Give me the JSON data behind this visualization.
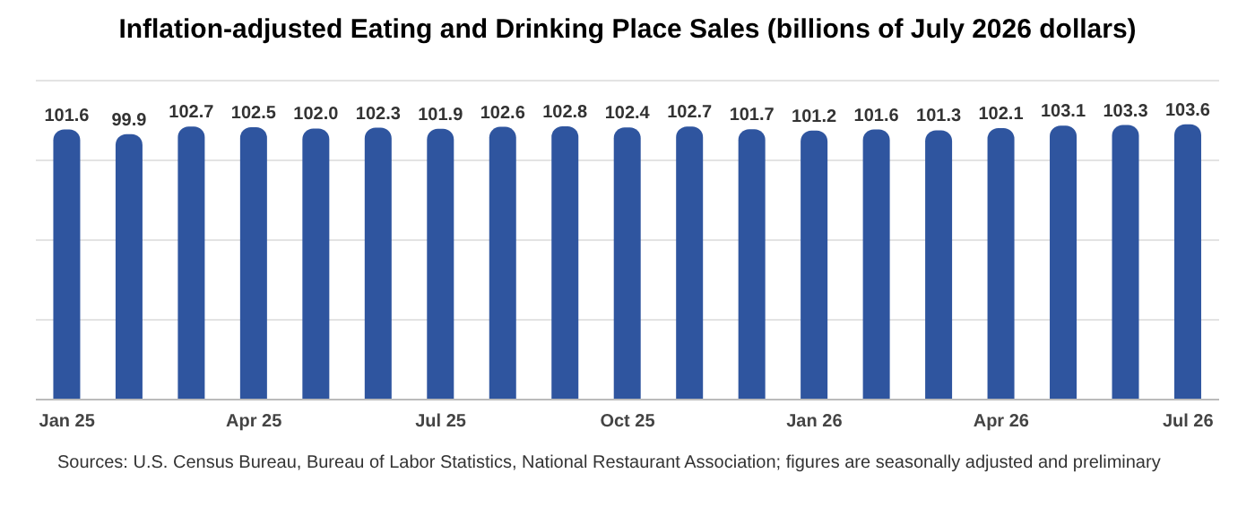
{
  "chart_data": {
    "type": "bar",
    "title": "Inflation-adjusted Eating and Drinking Place Sales (billions of July 2026 dollars)",
    "categories": [
      "Jan 25",
      null,
      null,
      "Apr 25",
      null,
      null,
      "Jul 25",
      null,
      null,
      "Oct 25",
      null,
      null,
      "Jan 26",
      null,
      null,
      "Apr 26",
      null,
      null,
      "Jul 26"
    ],
    "values": [
      101.6,
      99.9,
      102.7,
      102.5,
      102.0,
      102.3,
      101.9,
      102.6,
      102.8,
      102.4,
      102.7,
      101.7,
      101.2,
      101.6,
      101.3,
      102.1,
      103.1,
      103.3,
      103.6
    ],
    "value_labels": [
      "101.6",
      "99.9",
      "102.7",
      "102.5",
      "102.0",
      "102.3",
      "101.9",
      "102.6",
      "102.8",
      "102.4",
      "102.7",
      "101.7",
      "101.2",
      "101.6",
      "101.3",
      "102.1",
      "103.1",
      "103.3",
      "103.6"
    ],
    "color": "#2f559f",
    "grid": "y",
    "annotations": [
      "Sources: U.S. Census Bureau, Bureau of Labor Statistics, National Restaurant Association; figures are seasonally adjusted and preliminary"
    ]
  }
}
